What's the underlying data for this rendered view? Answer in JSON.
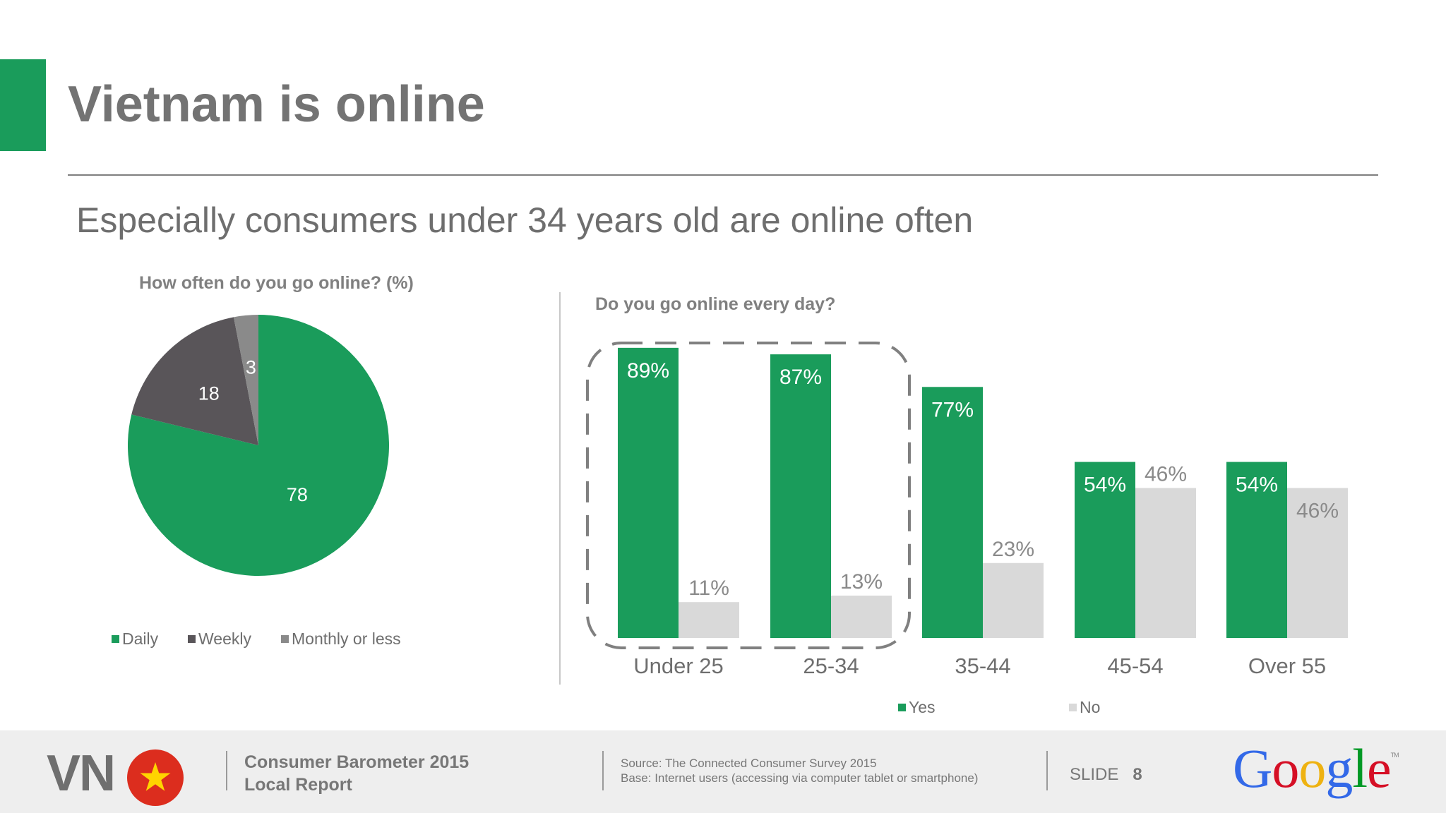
{
  "header": {
    "title": "Vietnam is online",
    "subtitle": "Especially consumers under 34 years old are online often"
  },
  "colors": {
    "accent": "#1a9c5b",
    "weekly": "#595559",
    "monthly": "#8a8a8a",
    "no": "#d9d9d9"
  },
  "chart_data": [
    {
      "type": "pie",
      "title": "How often do you go online? (%)",
      "categories": [
        "Daily",
        "Weekly",
        "Monthly or less"
      ],
      "values": [
        78,
        18,
        3
      ],
      "legend": "bottom"
    },
    {
      "type": "bar",
      "title": "Do you go online every day?",
      "categories": [
        "Under 25",
        "25-34",
        "35-44",
        "45-54",
        "Over 55"
      ],
      "series": [
        {
          "name": "Yes",
          "values": [
            89,
            87,
            77,
            54,
            54
          ],
          "labels": [
            "89%",
            "87%",
            "77%",
            "54%",
            "54%"
          ]
        },
        {
          "name": "No",
          "values": [
            11,
            13,
            23,
            46,
            46
          ],
          "labels": [
            "11%",
            "13%",
            "23%",
            "46%",
            "46%"
          ]
        }
      ],
      "ylim": [
        0,
        100
      ],
      "highlight": [
        "Under 25",
        "25-34"
      ],
      "legend": "bottom"
    }
  ],
  "footer": {
    "country_code": "VN",
    "report_line1": "Consumer Barometer 2015",
    "report_line2": "Local Report",
    "source_line1": "Source: The Connected Consumer Survey 2015",
    "source_line2": "Base: Internet users (accessing via computer  tablet or smartphone)",
    "slide_label": "SLIDE",
    "slide_number": "8",
    "logo": [
      "G",
      "o",
      "o",
      "g",
      "l",
      "e"
    ],
    "logo_tm": "TM"
  }
}
